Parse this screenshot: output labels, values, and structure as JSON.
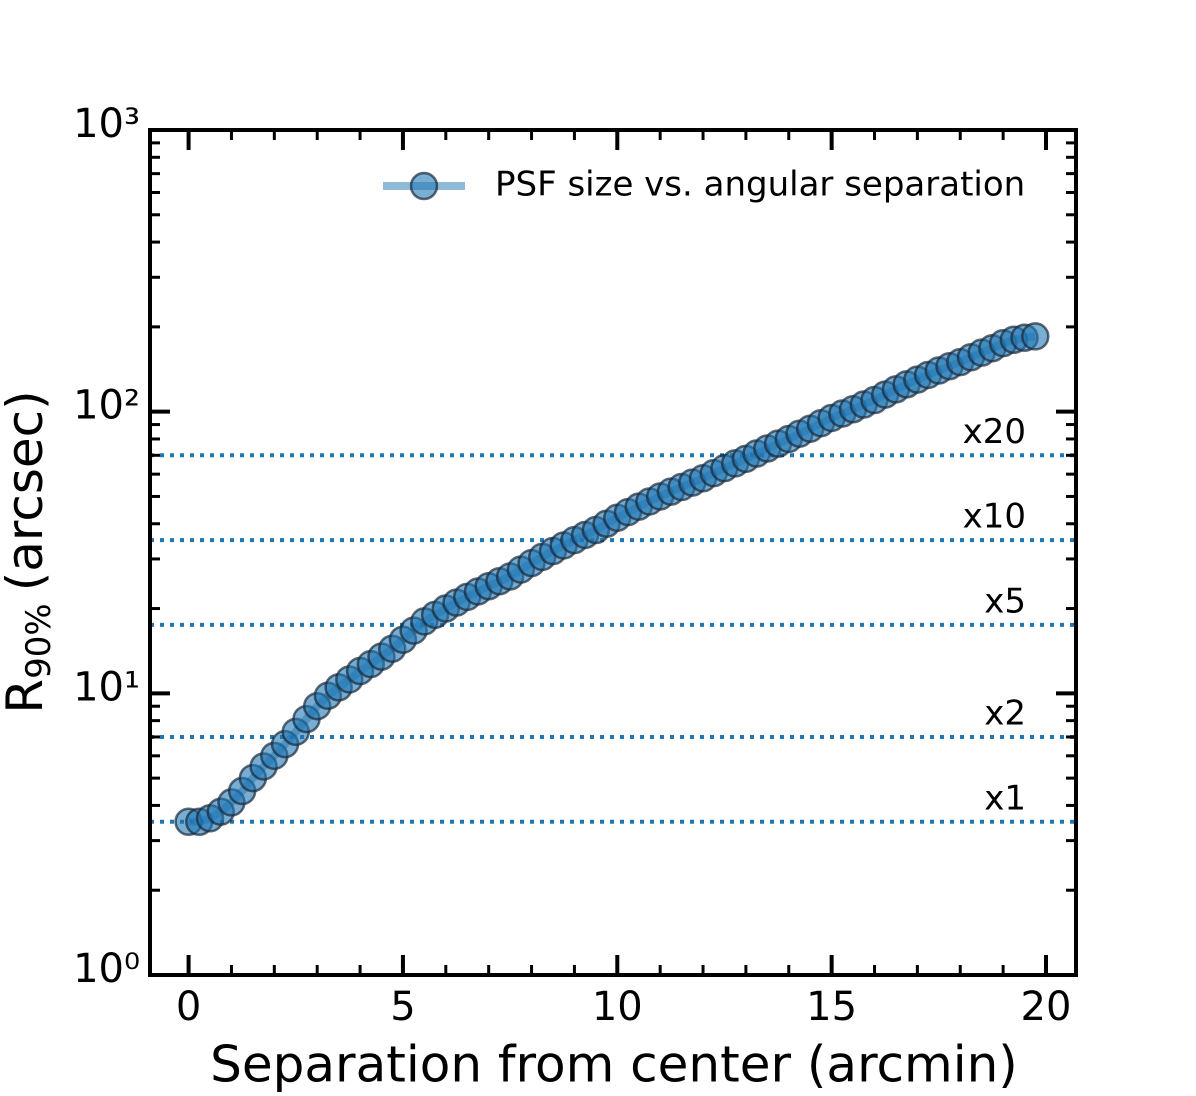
{
  "chart_data": {
    "type": "line",
    "x_label": "Separation from center (arcmin)",
    "y_label": {
      "main": "R",
      "sub": "90%",
      "unit": "(arcsec)"
    },
    "y_log": true,
    "xlim": [
      -0.9,
      20.7
    ],
    "ylim": [
      1,
      1000
    ],
    "xticks": [
      0,
      5,
      10,
      15,
      20
    ],
    "yticks": [
      {
        "value": 1,
        "label": "10⁰"
      },
      {
        "value": 10,
        "label": "10¹"
      },
      {
        "value": 100,
        "label": "10²"
      },
      {
        "value": 1000,
        "label": "10³"
      }
    ],
    "legend_loc": "upper right",
    "x": [
      0,
      0.25,
      0.5,
      0.75,
      1,
      1.25,
      1.5,
      1.75,
      2,
      2.25,
      2.5,
      2.75,
      3,
      3.25,
      3.5,
      3.75,
      4,
      4.25,
      4.5,
      4.75,
      5,
      5.25,
      5.5,
      5.75,
      6,
      6.25,
      6.5,
      6.75,
      7,
      7.25,
      7.5,
      7.75,
      8,
      8.25,
      8.5,
      8.75,
      9,
      9.25,
      9.5,
      9.75,
      10,
      10.25,
      10.5,
      10.75,
      11,
      11.25,
      11.5,
      11.75,
      12,
      12.25,
      12.5,
      12.75,
      13,
      13.25,
      13.5,
      13.75,
      14,
      14.25,
      14.5,
      14.75,
      15,
      15.25,
      15.5,
      15.75,
      16,
      16.25,
      16.5,
      16.75,
      17,
      17.25,
      17.5,
      17.75,
      18,
      18.25,
      18.5,
      18.75,
      19,
      19.25,
      19.5,
      19.75
    ],
    "series": [
      {
        "name": "PSF size vs. angular separation",
        "color": "#1f77b4",
        "values": [
          3.5,
          3.5,
          3.6,
          3.8,
          4.1,
          4.5,
          5.0,
          5.5,
          6.0,
          6.6,
          7.3,
          8.1,
          9.0,
          9.8,
          10.5,
          11.2,
          12,
          12.7,
          13.5,
          14.4,
          15.5,
          16.7,
          18,
          19,
          20,
          21,
          22,
          23,
          24,
          25,
          26,
          27.5,
          29,
          30.5,
          32,
          33.5,
          35,
          36.5,
          38,
          40,
          42,
          44,
          46,
          48,
          50,
          52,
          54,
          56,
          58,
          60.5,
          63,
          65.5,
          68,
          71,
          74,
          77,
          80,
          83.5,
          87,
          91,
          95,
          98.5,
          102,
          106,
          110,
          115,
          120,
          125,
          130,
          135,
          140,
          145,
          150,
          156,
          162,
          168,
          175,
          180,
          183,
          185
        ]
      }
    ],
    "hlines": {
      "color": "#1f77b4",
      "lines": [
        {
          "value": 3.5,
          "label": "x1"
        },
        {
          "value": 7,
          "label": "x2"
        },
        {
          "value": 17.5,
          "label": "x5"
        },
        {
          "value": 35,
          "label": "x10"
        },
        {
          "value": 70,
          "label": "x20"
        }
      ]
    }
  }
}
